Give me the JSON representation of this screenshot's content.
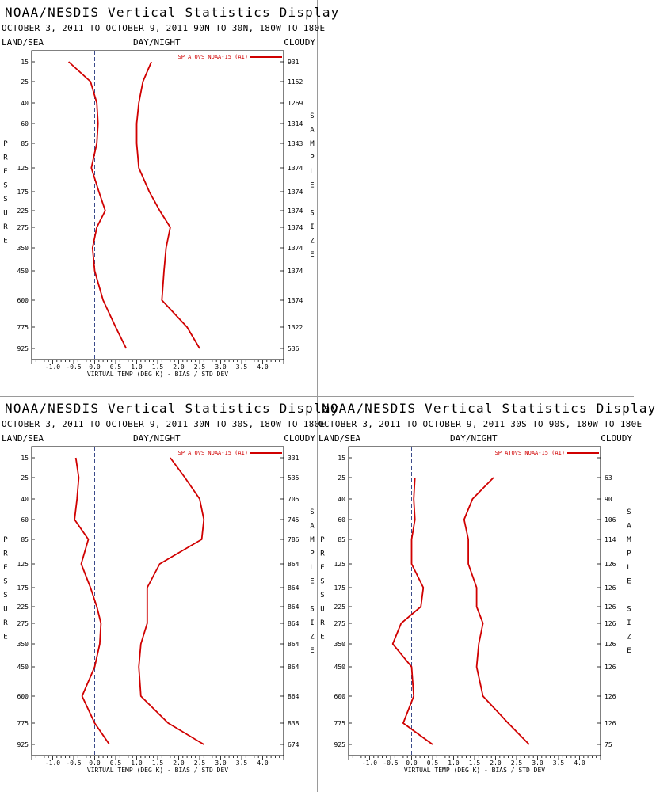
{
  "panels": [
    {
      "title": "NOAA/NESDIS Vertical Statistics Display",
      "subtitle": "OCTOBER 3, 2011 TO OCTOBER 9, 2011  90N TO 30N, 180W TO 180E",
      "left_label": "LAND/SEA",
      "center_label": "DAY/NIGHT",
      "right_label": "CLOUDY"
    },
    {
      "title": "NOAA/NESDIS Vertical Statistics Display",
      "subtitle": "OCTOBER 3, 2011 TO OCTOBER 9, 2011  30N TO 30S, 180W TO 180E",
      "left_label": "LAND/SEA",
      "center_label": "DAY/NIGHT",
      "right_label": "CLOUDY"
    },
    {
      "title": "NOAA/NESDIS Vertical Statistics Display",
      "subtitle": "OCTOBER 3, 2011 TO OCTOBER 9, 2011  30S TO 90S, 180W TO 180E",
      "left_label": "LAND/SEA",
      "center_label": "DAY/NIGHT",
      "right_label": "CLOUDY"
    }
  ],
  "chart_data": [
    {
      "type": "line",
      "region": "90N TO 30N",
      "xlabel": "VIRTUAL TEMP (DEG K) - BIAS / STD DEV",
      "ylabel": "PRESSURE",
      "right_axis_label": "SAMPLE SIZE",
      "xlim": [
        -1.5,
        4.5
      ],
      "x_ticks": [
        "-1.0",
        "-0.5",
        "0.0",
        "0.5",
        "1.0",
        "1.5",
        "2.0",
        "2.5",
        "3.0",
        "3.5",
        "4.0"
      ],
      "pressure_levels": [
        15,
        25,
        40,
        60,
        85,
        125,
        175,
        225,
        275,
        350,
        450,
        600,
        775,
        925
      ],
      "sample_size": [
        931,
        1152,
        1269,
        1314,
        1343,
        1374,
        1374,
        1374,
        1374,
        1374,
        1374,
        1374,
        1322,
        536
      ],
      "legend": "SP ATOVS NOAA-15 (A1)",
      "line_color": "#d00000",
      "series": [
        {
          "values": [
            -0.62,
            -0.1,
            0.05,
            0.08,
            0.05,
            -0.08,
            0.1,
            0.25,
            0.05,
            -0.05,
            0.0,
            0.2,
            0.5,
            0.75
          ]
        },
        {
          "values": [
            1.35,
            1.15,
            1.05,
            1.0,
            1.0,
            1.05,
            1.3,
            1.55,
            1.8,
            1.7,
            1.65,
            1.6,
            2.2,
            2.5
          ]
        }
      ]
    },
    {
      "type": "line",
      "region": "30N TO 30S",
      "xlabel": "VIRTUAL TEMP (DEG K) - BIAS / STD DEV",
      "ylabel": "PRESSURE",
      "right_axis_label": "SAMPLE SIZE",
      "xlim": [
        -1.5,
        4.5
      ],
      "x_ticks": [
        "-1.0",
        "-0.5",
        "0.0",
        "0.5",
        "1.0",
        "1.5",
        "2.0",
        "2.5",
        "3.0",
        "3.5",
        "4.0"
      ],
      "pressure_levels": [
        15,
        25,
        40,
        60,
        85,
        125,
        175,
        225,
        275,
        350,
        450,
        600,
        775,
        925
      ],
      "sample_size": [
        331,
        535,
        705,
        745,
        786,
        864,
        864,
        864,
        864,
        864,
        864,
        864,
        838,
        674
      ],
      "legend": "SP ATOVS NOAA-15 (A1)",
      "line_color": "#d00000",
      "series": [
        {
          "values": [
            -0.45,
            -0.38,
            -0.42,
            -0.48,
            -0.15,
            -0.32,
            -0.1,
            0.05,
            0.15,
            0.12,
            0.0,
            -0.3,
            0.0,
            0.35
          ]
        },
        {
          "values": [
            1.8,
            2.15,
            2.5,
            2.6,
            2.55,
            1.55,
            1.25,
            1.25,
            1.25,
            1.1,
            1.05,
            1.1,
            1.75,
            2.6
          ]
        }
      ]
    },
    {
      "type": "line",
      "region": "30S TO 90S",
      "xlabel": "VIRTUAL TEMP (DEG K) - BIAS / STD DEV",
      "ylabel": "PRESSURE",
      "right_axis_label": "SAMPLE SIZE",
      "xlim": [
        -1.5,
        4.5
      ],
      "x_ticks": [
        "-1.0",
        "-0.5",
        "0.0",
        "0.5",
        "1.0",
        "1.5",
        "2.0",
        "2.5",
        "3.0",
        "3.5",
        "4.0"
      ],
      "pressure_levels": [
        15,
        25,
        40,
        60,
        85,
        125,
        175,
        225,
        275,
        350,
        450,
        600,
        775,
        925
      ],
      "sample_size": [
        null,
        63,
        90,
        106,
        114,
        126,
        126,
        126,
        126,
        126,
        126,
        126,
        126,
        75
      ],
      "legend": "SP ATOVS NOAA-15 (A1)",
      "line_color": "#d00000",
      "series": [
        {
          "values": [
            null,
            0.08,
            0.05,
            0.08,
            0.0,
            0.0,
            0.28,
            0.22,
            -0.25,
            -0.45,
            0.0,
            0.05,
            -0.2,
            0.5
          ]
        },
        {
          "values": [
            null,
            1.95,
            1.45,
            1.25,
            1.35,
            1.35,
            1.55,
            1.55,
            1.7,
            1.6,
            1.55,
            1.7,
            2.3,
            2.8
          ]
        }
      ]
    }
  ]
}
